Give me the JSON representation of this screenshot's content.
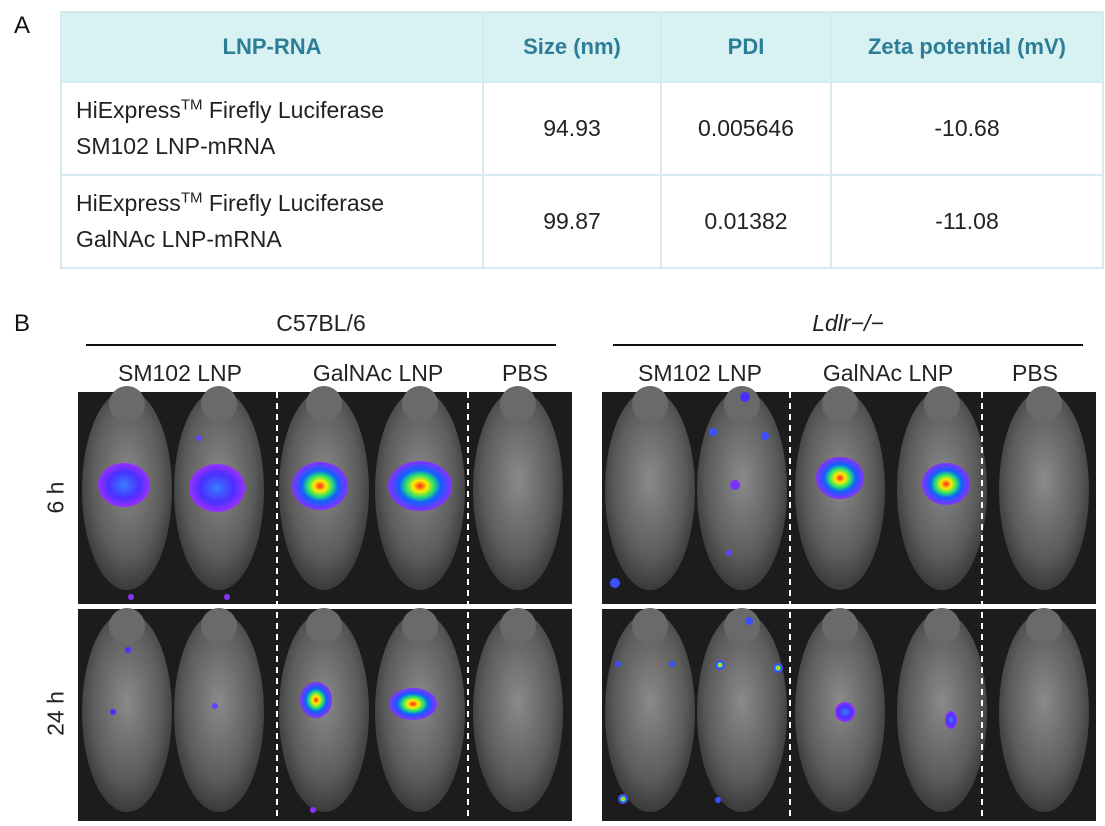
{
  "panel_a_label": "A",
  "panel_b_label": "B",
  "table": {
    "headers": [
      "LNP-RNA",
      "Size (nm)",
      "PDI",
      "Zeta potential (mV)"
    ],
    "rows": [
      {
        "name_line1": "HiExpress",
        "name_tm": "TM",
        "name_line1_rest": " Firefly Luciferase",
        "name_line2": "SM102 LNP-mRNA",
        "size": "94.93",
        "pdi": "0.005646",
        "zeta": "-10.68"
      },
      {
        "name_line1": "HiExpress",
        "name_tm": "TM",
        "name_line1_rest": " Firefly Luciferase",
        "name_line2": "GalNAc LNP-mRNA",
        "size": "99.87",
        "pdi": "0.01382",
        "zeta": "-11.08"
      }
    ]
  },
  "imaging": {
    "groups": [
      {
        "title": "C57BL/6",
        "italic": false,
        "columns": [
          "SM102 LNP",
          "GalNAc LNP",
          "PBS"
        ]
      },
      {
        "title": "Ldlr−/−",
        "italic": true,
        "columns": [
          "SM102 LNP",
          "GalNAc LNP",
          "PBS"
        ]
      }
    ],
    "timepoints": [
      "6 h",
      "24 h"
    ],
    "colors": {
      "background": "#1c1c1c",
      "mouse": "#6f6f6f",
      "divider": "#ffffff"
    }
  }
}
